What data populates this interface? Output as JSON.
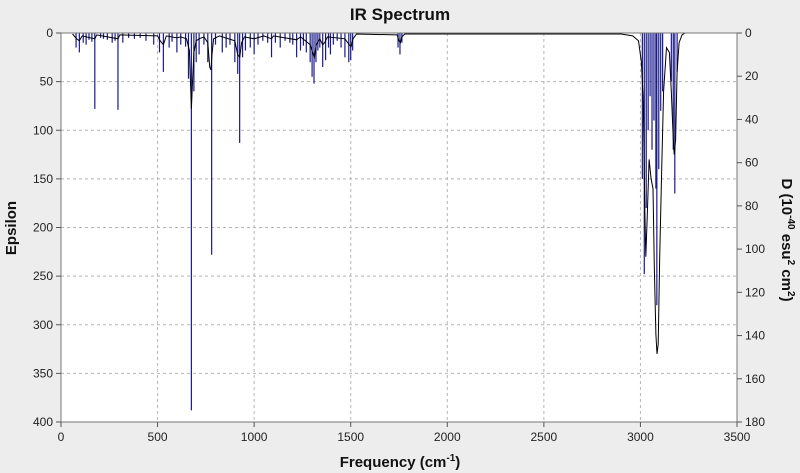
{
  "chart_data": {
    "type": "line",
    "title": "IR Spectrum",
    "xlabel": {
      "main": "Frequency (cm",
      "sup": "-1",
      "tail": ")"
    },
    "ylabel_left": "Epsilon",
    "ylabel_right": {
      "parts": [
        "D (10",
        "-40",
        " esu",
        "2",
        " cm",
        "2",
        ")"
      ]
    },
    "xlim": [
      0,
      3500
    ],
    "ylim_left": [
      0,
      400
    ],
    "ylim_right": [
      0,
      180
    ],
    "x_ticks": [
      0,
      500,
      1000,
      1500,
      2000,
      2500,
      3000,
      3500
    ],
    "y_left_ticks": [
      0,
      50,
      100,
      150,
      200,
      250,
      300,
      350,
      400
    ],
    "y_right_ticks": [
      0,
      20,
      40,
      60,
      80,
      100,
      120,
      140,
      160,
      180
    ],
    "y_inverted": true,
    "grid": true,
    "colors": {
      "stick": "#1a1a8c",
      "envelope": "#000000",
      "plot_bg": "#ffffff",
      "page_bg": "#ededed",
      "grid": "#b5b5b5"
    },
    "series": [
      {
        "name": "",
        "kind": "stick",
        "points": [
          [
            78,
            15
          ],
          [
            95,
            20
          ],
          [
            115,
            10
          ],
          [
            130,
            12
          ],
          [
            145,
            7
          ],
          [
            160,
            9
          ],
          [
            175,
            78
          ],
          [
            205,
            5
          ],
          [
            220,
            6
          ],
          [
            240,
            7
          ],
          [
            265,
            10
          ],
          [
            280,
            8
          ],
          [
            295,
            79
          ],
          [
            320,
            10
          ],
          [
            350,
            5
          ],
          [
            380,
            6
          ],
          [
            410,
            5
          ],
          [
            440,
            8
          ],
          [
            480,
            12
          ],
          [
            510,
            20
          ],
          [
            530,
            40
          ],
          [
            560,
            15
          ],
          [
            575,
            9
          ],
          [
            600,
            20
          ],
          [
            620,
            12
          ],
          [
            645,
            14
          ],
          [
            660,
            47
          ],
          [
            675,
            388
          ],
          [
            688,
            60
          ],
          [
            700,
            30
          ],
          [
            715,
            22
          ],
          [
            740,
            12
          ],
          [
            760,
            30
          ],
          [
            780,
            228
          ],
          [
            800,
            12
          ],
          [
            835,
            20
          ],
          [
            855,
            15
          ],
          [
            875,
            12
          ],
          [
            900,
            30
          ],
          [
            915,
            42
          ],
          [
            925,
            113
          ],
          [
            940,
            25
          ],
          [
            955,
            18
          ],
          [
            980,
            15
          ],
          [
            1000,
            22
          ],
          [
            1020,
            12
          ],
          [
            1045,
            8
          ],
          [
            1070,
            10
          ],
          [
            1090,
            25
          ],
          [
            1110,
            10
          ],
          [
            1135,
            15
          ],
          [
            1160,
            8
          ],
          [
            1185,
            10
          ],
          [
            1200,
            12
          ],
          [
            1220,
            25
          ],
          [
            1240,
            18
          ],
          [
            1255,
            13
          ],
          [
            1270,
            20
          ],
          [
            1290,
            30
          ],
          [
            1300,
            45
          ],
          [
            1310,
            52
          ],
          [
            1320,
            30
          ],
          [
            1330,
            18
          ],
          [
            1340,
            15
          ],
          [
            1355,
            35
          ],
          [
            1370,
            28
          ],
          [
            1385,
            15
          ],
          [
            1395,
            22
          ],
          [
            1410,
            12
          ],
          [
            1430,
            8
          ],
          [
            1450,
            15
          ],
          [
            1470,
            25
          ],
          [
            1490,
            30
          ],
          [
            1500,
            28
          ],
          [
            1510,
            18
          ],
          [
            1745,
            15
          ],
          [
            1755,
            22
          ],
          [
            1765,
            10
          ],
          [
            3010,
            150
          ],
          [
            3020,
            248
          ],
          [
            3030,
            180
          ],
          [
            3040,
            100
          ],
          [
            3050,
            65
          ],
          [
            3060,
            120
          ],
          [
            3070,
            90
          ],
          [
            3080,
            160
          ],
          [
            3085,
            280
          ],
          [
            3095,
            140
          ],
          [
            3105,
            80
          ],
          [
            3115,
            60
          ],
          [
            3160,
            50
          ],
          [
            3170,
            120
          ],
          [
            3178,
            165
          ],
          [
            3190,
            40
          ]
        ]
      },
      {
        "name": "",
        "kind": "envelope",
        "points": [
          [
            60,
            1
          ],
          [
            80,
            6
          ],
          [
            95,
            8
          ],
          [
            110,
            3
          ],
          [
            175,
            6
          ],
          [
            185,
            2
          ],
          [
            295,
            6
          ],
          [
            305,
            2
          ],
          [
            500,
            3
          ],
          [
            510,
            7
          ],
          [
            530,
            12
          ],
          [
            545,
            3
          ],
          [
            600,
            5
          ],
          [
            620,
            4
          ],
          [
            650,
            6
          ],
          [
            665,
            18
          ],
          [
            672,
            60
          ],
          [
            675,
            78
          ],
          [
            680,
            55
          ],
          [
            688,
            20
          ],
          [
            700,
            8
          ],
          [
            715,
            6
          ],
          [
            740,
            4
          ],
          [
            760,
            10
          ],
          [
            770,
            35
          ],
          [
            776,
            38
          ],
          [
            782,
            22
          ],
          [
            790,
            6
          ],
          [
            820,
            3
          ],
          [
            900,
            8
          ],
          [
            915,
            22
          ],
          [
            925,
            25
          ],
          [
            935,
            10
          ],
          [
            950,
            4
          ],
          [
            1000,
            6
          ],
          [
            1050,
            3
          ],
          [
            1090,
            6
          ],
          [
            1100,
            3
          ],
          [
            1220,
            7
          ],
          [
            1240,
            4
          ],
          [
            1290,
            12
          ],
          [
            1305,
            22
          ],
          [
            1312,
            25
          ],
          [
            1322,
            12
          ],
          [
            1340,
            6
          ],
          [
            1355,
            12
          ],
          [
            1365,
            10
          ],
          [
            1380,
            4
          ],
          [
            1470,
            6
          ],
          [
            1492,
            12
          ],
          [
            1502,
            14
          ],
          [
            1512,
            6
          ],
          [
            1530,
            1
          ],
          [
            1740,
            2
          ],
          [
            1750,
            8
          ],
          [
            1757,
            10
          ],
          [
            1765,
            4
          ],
          [
            1780,
            1
          ],
          [
            2900,
            1
          ],
          [
            2960,
            3
          ],
          [
            2990,
            8
          ],
          [
            3005,
            30
          ],
          [
            3015,
            70
          ],
          [
            3022,
            175
          ],
          [
            3028,
            230
          ],
          [
            3035,
            190
          ],
          [
            3045,
            130
          ],
          [
            3055,
            150
          ],
          [
            3065,
            160
          ],
          [
            3072,
            240
          ],
          [
            3080,
            310
          ],
          [
            3086,
            330
          ],
          [
            3092,
            320
          ],
          [
            3100,
            230
          ],
          [
            3110,
            140
          ],
          [
            3120,
            60
          ],
          [
            3135,
            15
          ],
          [
            3150,
            20
          ],
          [
            3160,
            60
          ],
          [
            3168,
            100
          ],
          [
            3175,
            125
          ],
          [
            3182,
            110
          ],
          [
            3190,
            40
          ],
          [
            3200,
            10
          ],
          [
            3215,
            2
          ],
          [
            3230,
            0
          ]
        ]
      }
    ]
  }
}
